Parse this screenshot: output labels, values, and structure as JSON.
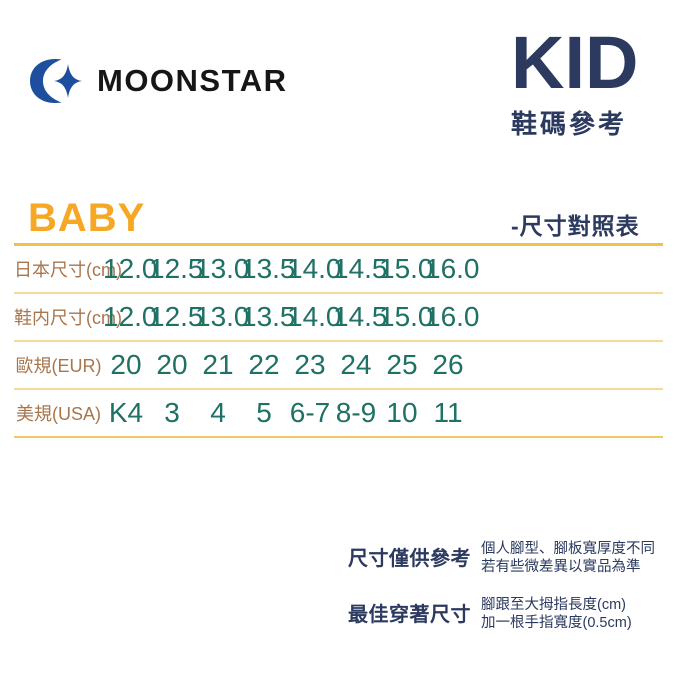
{
  "brand": {
    "name": "MOONSTAR",
    "logo_icon": "crescent-star-icon",
    "logo_color": "#1d4f9e"
  },
  "header": {
    "title": "KID",
    "subtitle": "鞋碼參考"
  },
  "section": {
    "category": "BABY",
    "caption": "-尺寸對照表"
  },
  "chart_data": {
    "type": "table",
    "rows": [
      {
        "label": "日本尺寸(cm)",
        "values": [
          "12.0",
          "12.5",
          "13.0",
          "13.5",
          "14.0",
          "14.5",
          "15.0",
          "16.0"
        ]
      },
      {
        "label": "鞋内尺寸(cm)",
        "values": [
          "12.0",
          "12.5",
          "13.0",
          "13.5",
          "14.0",
          "14.5",
          "15.0",
          "16.0"
        ]
      },
      {
        "label": "歐規(EUR)",
        "values": [
          "20",
          "20",
          "21",
          "22",
          "23",
          "24",
          "25",
          "26"
        ]
      },
      {
        "label": "美規(USA)",
        "values": [
          "K4",
          "3",
          "4",
          "5",
          "6-7",
          "8-9",
          "10",
          "11"
        ]
      }
    ]
  },
  "notes": [
    {
      "title": "尺寸僅供參考",
      "lines": [
        "個人腳型、腳板寬厚度不同",
        "若有些微差異以實品為準"
      ]
    },
    {
      "title": "最佳穿著尺寸",
      "lines": [
        "腳跟至大拇指長度(cm)",
        "加一根手指寬度(0.5cm)"
      ]
    }
  ],
  "colors": {
    "navy": "#2b3a5e",
    "gold": "#f6a723",
    "divider_gold": "#eec24e",
    "divider_light": "#f3da96",
    "label_brown": "#a8764d",
    "value_teal": "#1f7065",
    "logo_blue": "#1d4f9e"
  }
}
